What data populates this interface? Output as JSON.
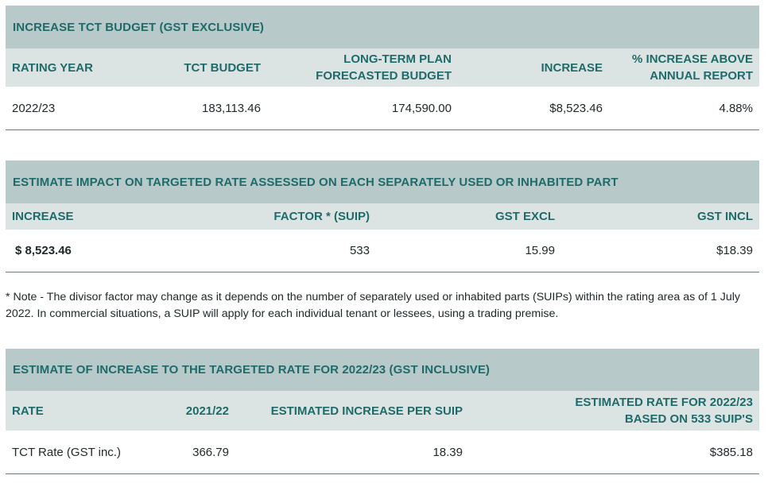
{
  "table1": {
    "title": "INCREASE TCT BUDGET (GST EXCLUSIVE)",
    "headers": {
      "rating_year": "RATING YEAR",
      "tct_budget": "TCT BUDGET",
      "ltp_line1": "LONG-TERM PLAN",
      "ltp_line2": "FORECASTED BUDGET",
      "increase": "INCREASE",
      "pct_line1": "% INCREASE ABOVE",
      "pct_line2": "ANNUAL REPORT"
    },
    "row": {
      "rating_year": "2022/23",
      "tct_budget": "183,113.46",
      "ltp": "174,590.00",
      "increase": "$8,523.46",
      "pct": "4.88%"
    }
  },
  "table2": {
    "title": "ESTIMATE IMPACT ON TARGETED RATE ASSESSED ON EACH SEPARATELY USED OR INHABITED PART",
    "headers": {
      "increase": "INCREASE",
      "factor": "FACTOR * (SUIP)",
      "gst_excl": "GST EXCL",
      "gst_incl": "GST INCL"
    },
    "row": {
      "increase": "$ 8,523.46",
      "factor": "533",
      "gst_excl": "15.99",
      "gst_incl": "$18.39"
    }
  },
  "note": "* Note - The divisor factor may change as it depends on the number of separately used or inhabited parts (SUIPs) within the rating area as of 1 July 2022. In commercial situations, a SUIP will apply for each individual tenant or lessees, using a trading premise.",
  "table3": {
    "title": "ESTIMATE OF INCREASE TO THE TARGETED RATE FOR 2022/23 (GST INCLUSIVE)",
    "headers": {
      "rate": "RATE",
      "year": "2021/22",
      "est_increase": "ESTIMATED INCREASE PER SUIP",
      "est_rate_line1": "ESTIMATED RATE FOR 2022/23",
      "est_rate_line2": "BASED ON 533 SUIP'S"
    },
    "row": {
      "rate": "TCT Rate (GST inc.)",
      "year": "366.79",
      "est_increase": "18.39",
      "est_rate": "$385.18"
    }
  },
  "colors": {
    "title_bg": "#b7c9c8",
    "header_bg": "#dce4e3",
    "accent_text": "#1f6b6a"
  }
}
